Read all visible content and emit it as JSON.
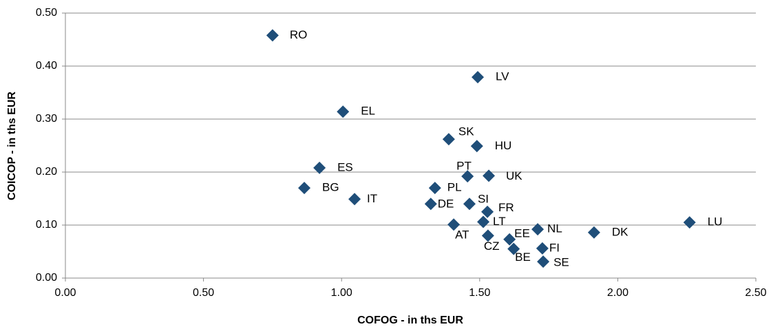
{
  "chart_data": {
    "type": "scatter",
    "x_label": "COFOG - in ths EUR",
    "y_label": "COICOP - in ths EUR",
    "color": "#1f4e79",
    "grid": true,
    "xlim": [
      0,
      2.5
    ],
    "ylim": [
      0,
      0.5
    ],
    "xticks": [
      {
        "value": 0,
        "label": "0.00"
      },
      {
        "value": 0.5,
        "label": "0.50"
      },
      {
        "value": 1,
        "label": "1.00"
      },
      {
        "value": 1.5,
        "label": "1.50"
      },
      {
        "value": 2,
        "label": "2.00"
      },
      {
        "value": 2.5,
        "label": "2.50"
      }
    ],
    "yticks": [
      {
        "value": 0,
        "label": "0.00"
      },
      {
        "value": 0.1,
        "label": "0.10"
      },
      {
        "value": 0.2,
        "label": "0.20"
      },
      {
        "value": 0.3,
        "label": "0.30"
      },
      {
        "value": 0.4,
        "label": "0.40"
      },
      {
        "value": 0.5,
        "label": "0.50"
      }
    ],
    "labels": [
      "RO",
      "LV",
      "EL",
      "SK",
      "HU",
      "ES",
      "PT",
      "UK",
      "BG",
      "PL",
      "IT",
      "DE",
      "SI",
      "FR",
      "LT",
      "LU",
      "AT",
      "NL",
      "DK",
      "CZ",
      "EE",
      "BE",
      "FI",
      "SE"
    ],
    "x": [
      0.75,
      1.493,
      1.005,
      1.388,
      1.49,
      0.92,
      1.456,
      1.533,
      0.865,
      1.338,
      1.047,
      1.323,
      1.463,
      1.528,
      1.513,
      2.26,
      1.406,
      1.71,
      1.914,
      1.53,
      1.608,
      1.623,
      1.727,
      1.73
    ],
    "values": [
      0.458,
      0.379,
      0.314,
      0.262,
      0.249,
      0.208,
      0.192,
      0.193,
      0.17,
      0.17,
      0.149,
      0.14,
      0.14,
      0.125,
      0.106,
      0.105,
      0.101,
      0.092,
      0.086,
      0.08,
      0.073,
      0.055,
      0.056,
      0.031
    ]
  }
}
